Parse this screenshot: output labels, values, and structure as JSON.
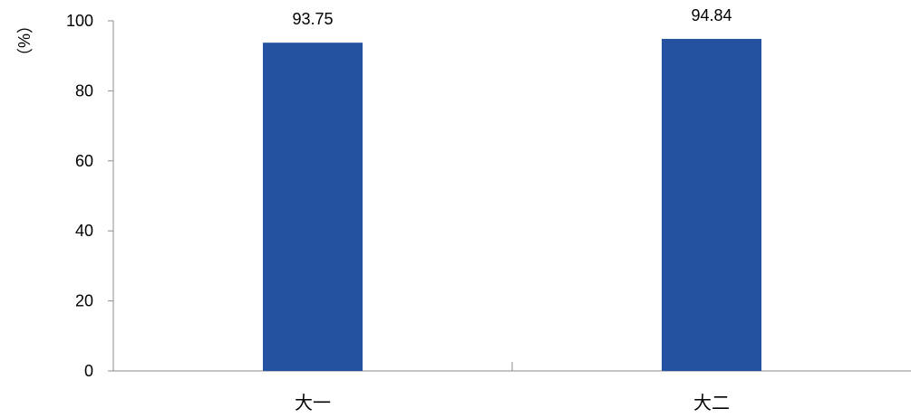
{
  "chart_data": {
    "type": "bar",
    "categories": [
      "大一",
      "大二"
    ],
    "values": [
      93.75,
      94.84
    ],
    "data_labels": [
      "93.75",
      "94.84"
    ],
    "yticks": [
      "0",
      "20",
      "40",
      "60",
      "80",
      "100"
    ],
    "ylabel": "（%）",
    "ylim": [
      0,
      100
    ],
    "grid": false,
    "legend": "none",
    "bar_color": "#2451A0",
    "axis_color": "#8C8C8C"
  }
}
